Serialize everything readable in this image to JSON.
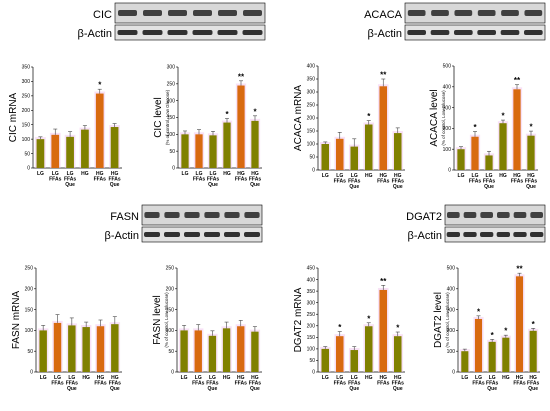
{
  "colors": {
    "bar_lg": "#808000",
    "bar_hg": "#d86a10",
    "bar_que": "#a36a18",
    "axis": "#000000",
    "error": "#444444",
    "halo": "#f2c8ee"
  },
  "blots": [
    {
      "label": "CIC",
      "actin": "β-Actin",
      "lanes": 6
    },
    {
      "label": "ACACA",
      "actin": "β-Actin",
      "lanes": 6
    },
    {
      "label": "FASN",
      "actin": "β-Actin",
      "lanes": 6
    },
    {
      "label": "DGAT2",
      "actin": "β-Actin",
      "lanes": 6
    }
  ],
  "chart_data": [
    {
      "type": "bar",
      "ylabel": "CIC mRNA",
      "ylim": [
        0,
        350
      ],
      "yticks": [
        0,
        50,
        100,
        150,
        200,
        250,
        300,
        350
      ],
      "categories": [
        "LG",
        "LG FFAs",
        "LG FFAs Que",
        "HG",
        "HG FFAs",
        "HG FFAs Que"
      ],
      "values": [
        100,
        115,
        108,
        133,
        258,
        142
      ],
      "errors": [
        8,
        20,
        18,
        14,
        15,
        12
      ],
      "significance": [
        "",
        "",
        "",
        "",
        "*",
        ""
      ]
    },
    {
      "type": "bar",
      "ylabel": "CIC level",
      "ysublabel": "(% of control, Low Glucose)",
      "ylim": [
        0,
        300
      ],
      "yticks": [
        0,
        50,
        100,
        150,
        200,
        250,
        300
      ],
      "categories": [
        "LG",
        "LG FFAs",
        "LG FFAs Que",
        "HG",
        "HG FFAs",
        "HG FFAs Que"
      ],
      "values": [
        100,
        100,
        97,
        135,
        245,
        140
      ],
      "errors": [
        10,
        14,
        12,
        12,
        14,
        15
      ],
      "significance": [
        "",
        "",
        "",
        "*",
        "**",
        "*"
      ]
    },
    {
      "type": "bar",
      "ylabel": "ACACA mRNA",
      "ylim": [
        0,
        400
      ],
      "yticks": [
        0,
        50,
        100,
        150,
        200,
        250,
        300,
        350,
        400
      ],
      "categories": [
        "LG",
        "LG FFAs",
        "LG FFAs Que",
        "HG",
        "HG FFAs",
        "HG FFAs Que"
      ],
      "values": [
        100,
        120,
        90,
        175,
        322,
        142
      ],
      "errors": [
        8,
        25,
        30,
        15,
        28,
        20
      ],
      "significance": [
        "",
        "",
        "",
        "*",
        "**",
        ""
      ]
    },
    {
      "type": "bar",
      "ylabel": "ACACA level",
      "ysublabel": "(% of control, Low Glucose)",
      "ylim": [
        0,
        500
      ],
      "yticks": [
        0,
        100,
        200,
        300,
        400,
        500
      ],
      "categories": [
        "LG",
        "LG FFAs",
        "LG FFAs Que",
        "HG",
        "HG FFAs",
        "HG FFAs Que"
      ],
      "values": [
        100,
        160,
        70,
        225,
        388,
        165
      ],
      "errors": [
        12,
        25,
        20,
        15,
        22,
        22
      ],
      "significance": [
        "",
        "*",
        "",
        "*",
        "**",
        "*"
      ]
    },
    {
      "type": "bar",
      "ylabel": "FASN mRNA",
      "ylim": [
        0,
        250
      ],
      "yticks": [
        0,
        50,
        100,
        150,
        200,
        250
      ],
      "categories": [
        "LG",
        "LG FFAs",
        "LG FFAs Que",
        "HG",
        "HG FFAs",
        "HG FFAs Que"
      ],
      "values": [
        100,
        118,
        112,
        108,
        110,
        115
      ],
      "errors": [
        12,
        20,
        18,
        12,
        15,
        18
      ],
      "significance": [
        "",
        "",
        "",
        "",
        "",
        ""
      ]
    },
    {
      "type": "bar",
      "ylabel": "FASN level",
      "ysublabel": "(% of control, Low Glucose)",
      "ylim": [
        0,
        250
      ],
      "yticks": [
        0,
        50,
        100,
        150,
        200,
        250
      ],
      "categories": [
        "LG",
        "LG FFAs",
        "LG FFAs Que",
        "HG",
        "HG FFAs",
        "HG FFAs Que"
      ],
      "values": [
        100,
        100,
        87,
        105,
        110,
        97
      ],
      "errors": [
        12,
        14,
        12,
        15,
        14,
        12
      ],
      "significance": [
        "",
        "",
        "",
        "",
        "",
        ""
      ]
    },
    {
      "type": "bar",
      "ylabel": "DGAT2 mRNA",
      "ylim": [
        0,
        450
      ],
      "yticks": [
        0,
        50,
        100,
        150,
        200,
        250,
        300,
        350,
        400,
        450
      ],
      "categories": [
        "LG",
        "LG FFAs",
        "LG FFAs Que",
        "HG",
        "HG FFAs",
        "HG FFAs Que"
      ],
      "values": [
        100,
        155,
        95,
        198,
        355,
        155
      ],
      "errors": [
        10,
        20,
        15,
        15,
        20,
        18
      ],
      "significance": [
        "",
        "*",
        "",
        "*",
        "**",
        "*"
      ]
    },
    {
      "type": "bar",
      "ylabel": "DGAT2 level",
      "ysublabel": "(% of control, Low Glucose)",
      "ylim": [
        0,
        500
      ],
      "yticks": [
        0,
        100,
        200,
        300,
        400,
        500
      ],
      "categories": [
        "LG",
        "LG FFAs",
        "LG FFAs Que",
        "HG",
        "HG FFAs",
        "HG FFAs Que"
      ],
      "values": [
        100,
        255,
        145,
        165,
        460,
        198
      ],
      "errors": [
        10,
        15,
        12,
        12,
        15,
        12
      ],
      "significance": [
        "",
        "*",
        "*",
        "*",
        "**",
        "*"
      ]
    }
  ]
}
